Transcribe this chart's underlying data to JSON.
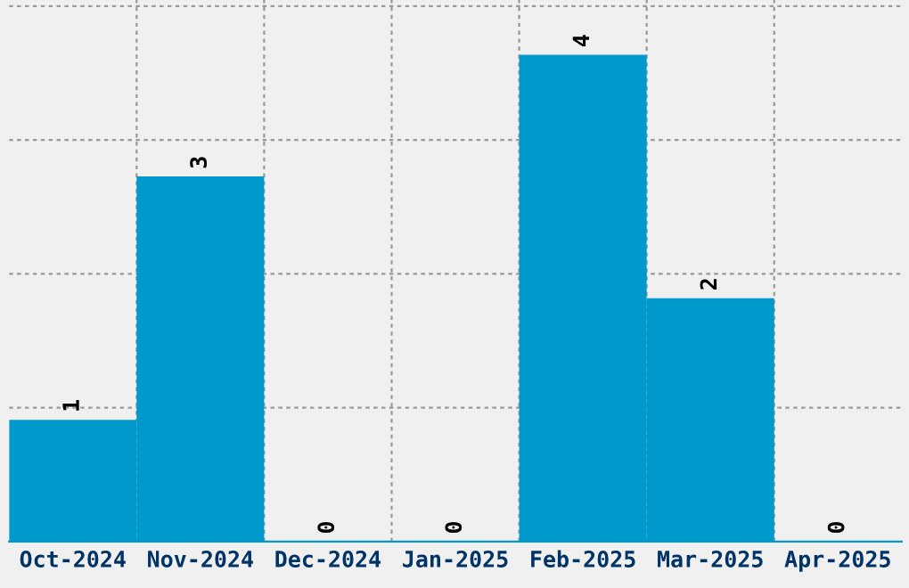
{
  "chart_data": {
    "type": "bar",
    "categories": [
      "Oct-2024",
      "Nov-2024",
      "Dec-2024",
      "Jan-2025",
      "Feb-2025",
      "Mar-2025",
      "Apr-2025"
    ],
    "values": [
      1,
      3,
      0,
      0,
      4,
      2,
      0
    ],
    "color": "#0099cc",
    "ylim": [
      0,
      4.45
    ],
    "yticks": [
      {
        "value": 1.1,
        "label": null
      },
      {
        "value": 2.2,
        "label": null
      },
      {
        "value": 3.3,
        "label": null
      },
      {
        "value": 4.4,
        "label": null
      }
    ],
    "tick_labels": "x",
    "grid": true,
    "data_labels": true
  }
}
